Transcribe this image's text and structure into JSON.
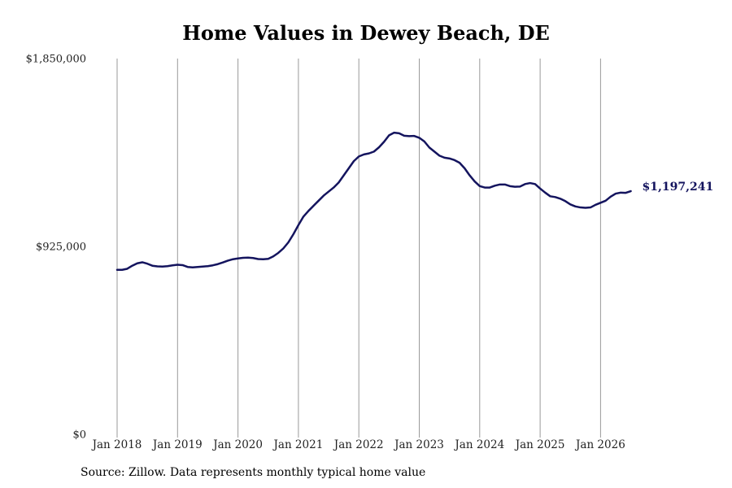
{
  "chart_data": {
    "type": "line",
    "title": "Home Values in Dewey Beach, DE",
    "source_note": "Source: Zillow. Data represents monthly typical home value",
    "y_ticks": [
      "$0",
      "$925,000",
      "$1,850,000"
    ],
    "y_tick_values": [
      0,
      925000,
      1850000
    ],
    "ylim": [
      0,
      1850000
    ],
    "x_ticks": [
      "Jan 2018",
      "Jan 2019",
      "Jan 2020",
      "Jan 2021",
      "Jan 2022",
      "Jan 2023",
      "Jan 2024",
      "Jan 2025",
      "Jan 2026"
    ],
    "xlim": [
      "2018-01",
      "2026-07"
    ],
    "grid": "vertical lines at January of each year",
    "line_color": "#14145e",
    "end_label": "$1,197,241",
    "series": [
      {
        "values": [
          [
            "2018-01",
            810000
          ],
          [
            "2018-02",
            810000
          ],
          [
            "2018-03",
            815000
          ],
          [
            "2018-04",
            830000
          ],
          [
            "2018-05",
            842000
          ],
          [
            "2018-06",
            847000
          ],
          [
            "2018-07",
            840000
          ],
          [
            "2018-08",
            830000
          ],
          [
            "2018-09",
            827000
          ],
          [
            "2018-10",
            826000
          ],
          [
            "2018-11",
            828000
          ],
          [
            "2018-12",
            832000
          ],
          [
            "2019-01",
            835000
          ],
          [
            "2019-02",
            833000
          ],
          [
            "2019-03",
            824000
          ],
          [
            "2019-04",
            822000
          ],
          [
            "2019-05",
            824000
          ],
          [
            "2019-06",
            826000
          ],
          [
            "2019-07",
            828000
          ],
          [
            "2019-08",
            832000
          ],
          [
            "2019-09",
            838000
          ],
          [
            "2019-10",
            846000
          ],
          [
            "2019-11",
            855000
          ],
          [
            "2019-12",
            862000
          ],
          [
            "2020-01",
            866000
          ],
          [
            "2020-02",
            869000
          ],
          [
            "2020-03",
            870000
          ],
          [
            "2020-04",
            868000
          ],
          [
            "2020-05",
            863000
          ],
          [
            "2020-06",
            862000
          ],
          [
            "2020-07",
            864000
          ],
          [
            "2020-08",
            876000
          ],
          [
            "2020-09",
            893000
          ],
          [
            "2020-10",
            915000
          ],
          [
            "2020-11",
            945000
          ],
          [
            "2020-12",
            985000
          ],
          [
            "2021-01",
            1030000
          ],
          [
            "2021-02",
            1072000
          ],
          [
            "2021-03",
            1100000
          ],
          [
            "2021-04",
            1125000
          ],
          [
            "2021-05",
            1150000
          ],
          [
            "2021-06",
            1175000
          ],
          [
            "2021-07",
            1195000
          ],
          [
            "2021-08",
            1215000
          ],
          [
            "2021-09",
            1240000
          ],
          [
            "2021-10",
            1275000
          ],
          [
            "2021-11",
            1310000
          ],
          [
            "2021-12",
            1345000
          ],
          [
            "2022-01",
            1368000
          ],
          [
            "2022-02",
            1378000
          ],
          [
            "2022-03",
            1383000
          ],
          [
            "2022-04",
            1392000
          ],
          [
            "2022-05",
            1413000
          ],
          [
            "2022-06",
            1440000
          ],
          [
            "2022-07",
            1472000
          ],
          [
            "2022-08",
            1485000
          ],
          [
            "2022-09",
            1482000
          ],
          [
            "2022-10",
            1470000
          ],
          [
            "2022-11",
            1468000
          ],
          [
            "2022-12",
            1469000
          ],
          [
            "2023-01",
            1460000
          ],
          [
            "2023-02",
            1442000
          ],
          [
            "2023-03",
            1412000
          ],
          [
            "2023-04",
            1392000
          ],
          [
            "2023-05",
            1372000
          ],
          [
            "2023-06",
            1362000
          ],
          [
            "2023-07",
            1358000
          ],
          [
            "2023-08",
            1350000
          ],
          [
            "2023-09",
            1337000
          ],
          [
            "2023-10",
            1310000
          ],
          [
            "2023-11",
            1275000
          ],
          [
            "2023-12",
            1245000
          ],
          [
            "2024-01",
            1222000
          ],
          [
            "2024-02",
            1215000
          ],
          [
            "2024-03",
            1215000
          ],
          [
            "2024-04",
            1224000
          ],
          [
            "2024-05",
            1230000
          ],
          [
            "2024-06",
            1230000
          ],
          [
            "2024-07",
            1222000
          ],
          [
            "2024-08",
            1219000
          ],
          [
            "2024-09",
            1220000
          ],
          [
            "2024-10",
            1232000
          ],
          [
            "2024-11",
            1237000
          ],
          [
            "2024-12",
            1232000
          ],
          [
            "2025-01",
            1210000
          ],
          [
            "2025-02",
            1190000
          ],
          [
            "2025-03",
            1172000
          ],
          [
            "2025-04",
            1168000
          ],
          [
            "2025-05",
            1160000
          ],
          [
            "2025-06",
            1148000
          ],
          [
            "2025-07",
            1132000
          ],
          [
            "2025-08",
            1122000
          ],
          [
            "2025-09",
            1117000
          ],
          [
            "2025-10",
            1115000
          ],
          [
            "2025-11",
            1117000
          ],
          [
            "2025-12",
            1130000
          ],
          [
            "2026-01",
            1140000
          ],
          [
            "2026-02",
            1150000
          ],
          [
            "2026-03",
            1170000
          ],
          [
            "2026-04",
            1185000
          ],
          [
            "2026-05",
            1190000
          ],
          [
            "2026-06",
            1189000
          ],
          [
            "2026-07",
            1197241
          ]
        ]
      }
    ]
  }
}
